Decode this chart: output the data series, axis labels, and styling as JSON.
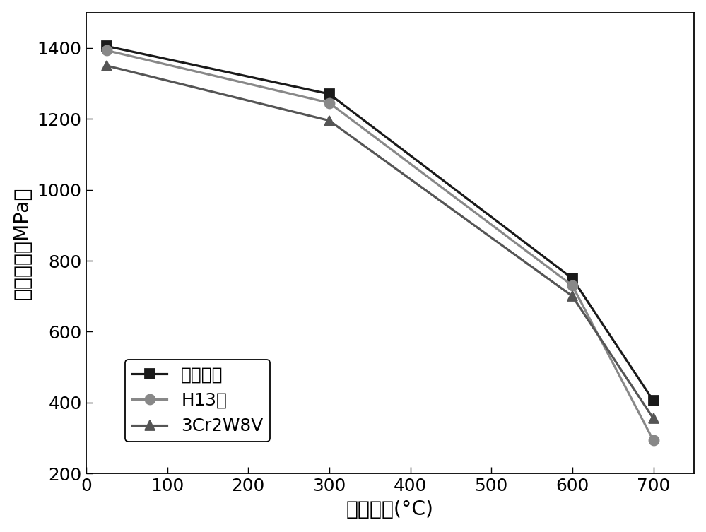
{
  "series": [
    {
      "label": "本发明钓",
      "x": [
        25,
        300,
        600,
        700
      ],
      "y": [
        1405,
        1270,
        750,
        405
      ],
      "color": "#1a1a1a",
      "marker": "s",
      "markersize": 8,
      "linewidth": 1.8
    },
    {
      "label": "H13钓",
      "x": [
        25,
        300,
        600,
        700
      ],
      "y": [
        1393,
        1245,
        730,
        293
      ],
      "color": "#888888",
      "marker": "o",
      "markersize": 8,
      "linewidth": 1.8
    },
    {
      "label": "3Cr2W8V",
      "x": [
        25,
        300,
        600,
        700
      ],
      "y": [
        1350,
        1195,
        700,
        355
      ],
      "color": "#555555",
      "marker": "^",
      "markersize": 8,
      "linewidth": 1.8
    }
  ],
  "xlabel": "测试温度(°C)",
  "ylabel": "高温强度（MPa）",
  "xlim": [
    0,
    750
  ],
  "ylim": [
    200,
    1500
  ],
  "xticks": [
    0,
    100,
    200,
    300,
    400,
    500,
    600,
    700
  ],
  "yticks": [
    200,
    400,
    600,
    800,
    1000,
    1200,
    1400
  ],
  "figsize": [
    7.87,
    5.93
  ],
  "dpi": 127,
  "font_size_label": 16,
  "font_size_tick": 14,
  "font_size_legend": 14,
  "background_color": "#ffffff"
}
